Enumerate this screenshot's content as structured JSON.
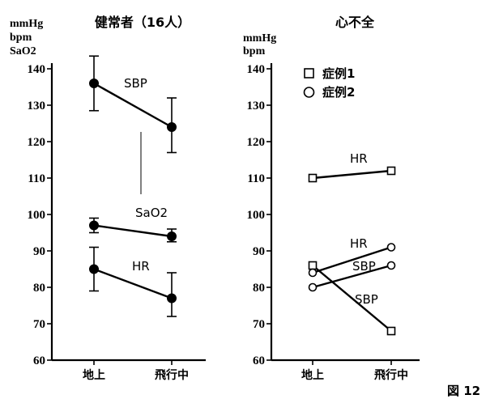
{
  "figure_label": "図 12",
  "chart_data": [
    {
      "type": "line",
      "title": "健常者（16人）",
      "unit_labels": [
        "mmHg",
        "bpm",
        "SaO2"
      ],
      "categories": [
        "地上",
        "飛行中"
      ],
      "ylim": [
        60,
        145
      ],
      "yticks": [
        60,
        70,
        80,
        90,
        100,
        110,
        120,
        130,
        140
      ],
      "series": [
        {
          "name": "SBP",
          "marker": "filled-circle",
          "values": [
            136,
            124
          ],
          "err_low": [
            128.5,
            117
          ],
          "err_high": [
            143.5,
            132
          ]
        },
        {
          "name": "SaO2",
          "marker": "filled-circle",
          "values": [
            97,
            94
          ],
          "err_low": [
            95,
            92.5
          ],
          "err_high": [
            99,
            96
          ]
        },
        {
          "name": "HR",
          "marker": "filled-circle",
          "values": [
            85,
            77
          ],
          "err_low": [
            79,
            72
          ],
          "err_high": [
            91,
            84
          ]
        }
      ]
    },
    {
      "type": "line",
      "title": "心不全",
      "unit_labels": [
        "mmHg",
        "bpm"
      ],
      "categories": [
        "地上",
        "飛行中"
      ],
      "ylim": [
        60,
        145
      ],
      "yticks": [
        60,
        70,
        80,
        90,
        100,
        110,
        120,
        130,
        140
      ],
      "legend": [
        {
          "marker": "square",
          "label": "症例1"
        },
        {
          "marker": "circle",
          "label": "症例2"
        }
      ],
      "series": [
        {
          "name": "HR",
          "case": "症例1",
          "marker": "square",
          "values": [
            110,
            112
          ]
        },
        {
          "name": "SBP",
          "case": "症例1",
          "marker": "square",
          "values": [
            86,
            68
          ]
        },
        {
          "name": "HR",
          "case": "症例2",
          "marker": "circle",
          "values": [
            84,
            91
          ]
        },
        {
          "name": "SBP",
          "case": "症例2",
          "marker": "circle",
          "values": [
            80,
            86
          ]
        }
      ]
    }
  ]
}
